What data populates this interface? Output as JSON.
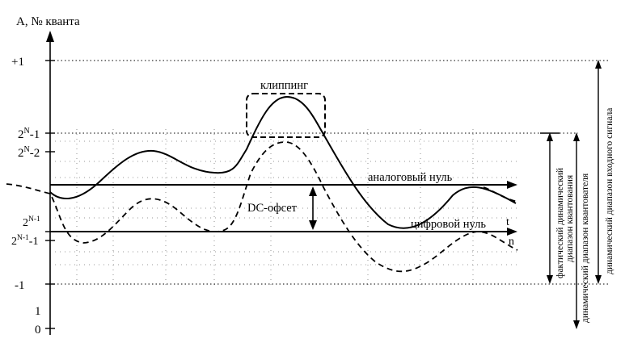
{
  "axis": {
    "y_title": "A, № кванта",
    "x_symbol_analog": "t",
    "x_symbol_digital": "n"
  },
  "levels": {
    "plus_one": "+1",
    "max_code": "2",
    "max_code_sup": "N",
    "max_code_suffix": "-1",
    "max_code_minus": "2",
    "max_code_minus_sup": "N",
    "max_code_minus_suffix": "-2",
    "half_code": "2",
    "half_code_sup": "N-1",
    "half_code_minus": "2",
    "half_code_minus_sup": "N-1",
    "half_code_minus_suffix": "-1",
    "minus_one": "-1",
    "one": "1",
    "zero": "0"
  },
  "annotations": {
    "clipping": "клиппинг",
    "analog_zero": "аналоговый нуль",
    "dc_offset": "DC-офсет",
    "digital_zero": "цифровой нуль"
  },
  "ranges": {
    "actual_line1": "фактический динамический",
    "actual_line2": "диапазон квантования",
    "quantizer": "динамический диапазон квантователя",
    "input": "динамический диапазон входного сигнала"
  }
}
